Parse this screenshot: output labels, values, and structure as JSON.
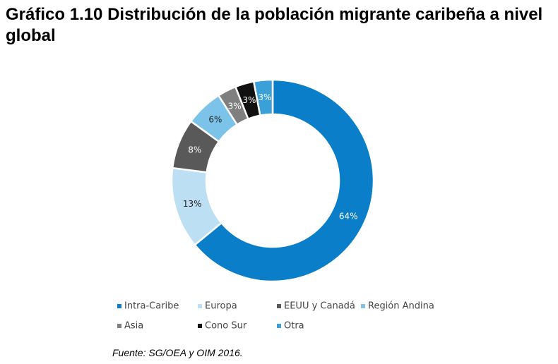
{
  "title": "Gráfico 1.10 Distribución de la población migrante caribeña a nivel global",
  "source": "Fuente: SG/OEA y OIM 2016.",
  "chart_data": {
    "type": "pie",
    "subtype": "donut",
    "categories": [
      "Intra-Caribe",
      "Europa",
      "EEUU y Canadá",
      "Región Andina",
      "Asia",
      "Cono Sur",
      "Otra"
    ],
    "values": [
      64,
      13,
      8,
      6,
      3,
      3,
      3
    ],
    "data_labels": [
      "64%",
      "13%",
      "8%",
      "6%",
      "3%",
      "3%",
      "3%"
    ],
    "colors": [
      "#0a7ec9",
      "#bddff3",
      "#595959",
      "#7cc3ea",
      "#7f7f7f",
      "#111111",
      "#3aa0d8"
    ],
    "legend_position": "bottom"
  }
}
